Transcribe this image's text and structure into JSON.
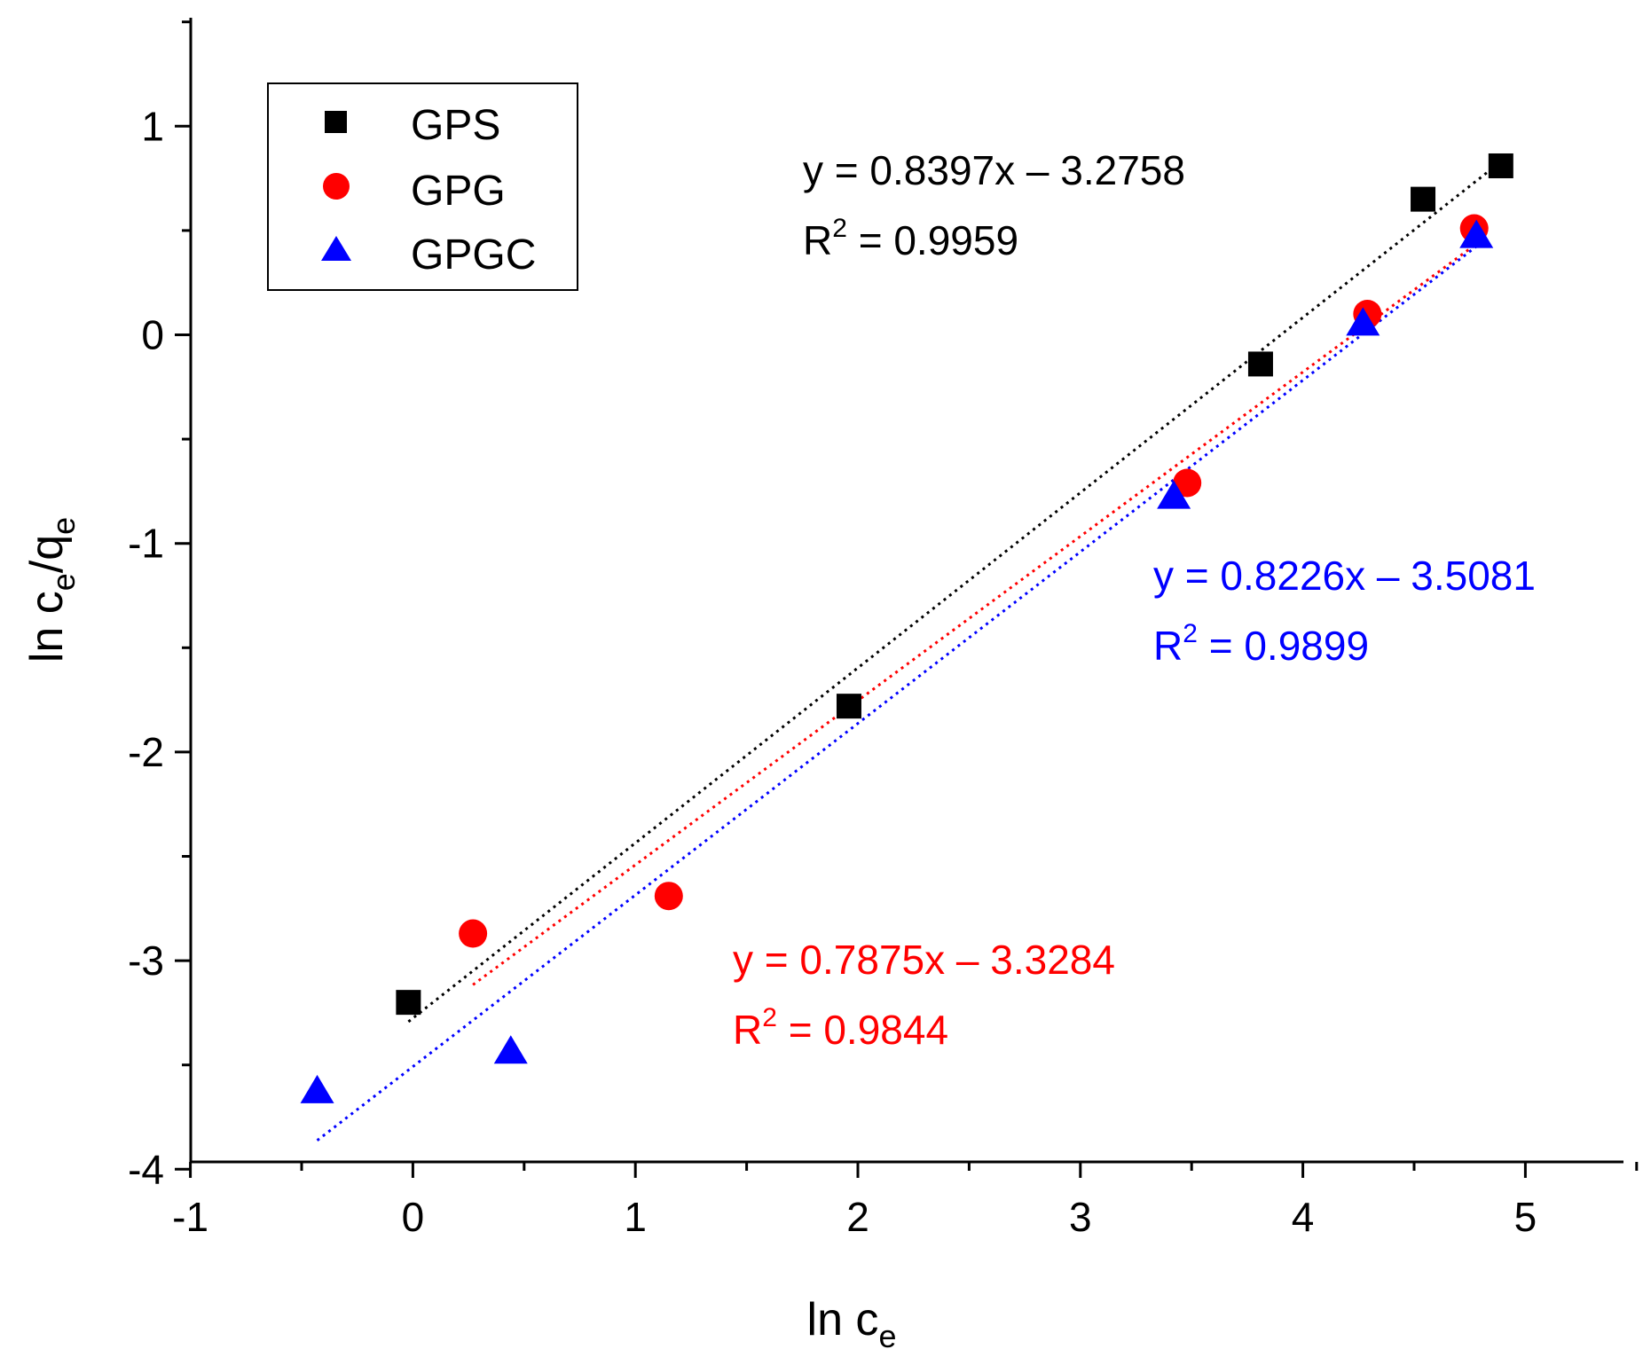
{
  "chart_data": {
    "type": "scatter",
    "xlabel": {
      "main": "ln c",
      "sub": "e"
    },
    "ylabel": {
      "pre": "ln c",
      "sub1": "e",
      "mid": "/q",
      "sub2": "e"
    },
    "xlim": [
      -1,
      5.5
    ],
    "ylim": [
      -4,
      1.5
    ],
    "x_ticks": [
      -1,
      0,
      1,
      2,
      3,
      4,
      5
    ],
    "x_tick_labels": [
      "-1",
      "0",
      "1",
      "2",
      "3",
      "4",
      "5"
    ],
    "y_ticks": [
      -4,
      -3,
      -2,
      -1,
      0,
      1
    ],
    "y_tick_labels": [
      "-4",
      "-3",
      "-2",
      "-1",
      "0",
      "1"
    ],
    "legend_position": "top-left",
    "series": [
      {
        "name": "GPS",
        "marker": "square",
        "color": "#000000",
        "x": [
          -0.02,
          1.96,
          3.81,
          4.54,
          4.89
        ],
        "y": [
          -3.2,
          -1.78,
          -0.14,
          0.65,
          0.81
        ],
        "fit": {
          "slope": 0.8397,
          "intercept": -3.2758,
          "x_range": [
            -0.02,
            4.89
          ]
        },
        "equation": "y = 0.8397x – 3.2758",
        "r2_label": "R",
        "r2_sup": "2",
        "r2_value": " = 0.9959"
      },
      {
        "name": "GPG",
        "marker": "circle",
        "color": "#ff0000",
        "x": [
          0.27,
          1.15,
          3.48,
          4.29,
          4.77
        ],
        "y": [
          -2.87,
          -2.69,
          -0.71,
          0.1,
          0.51
        ],
        "fit": {
          "slope": 0.7875,
          "intercept": -3.3284,
          "x_range": [
            0.27,
            4.77
          ]
        },
        "equation": "y = 0.7875x – 3.3284",
        "r2_label": "R",
        "r2_sup": "2",
        "r2_value": " = 0.9844"
      },
      {
        "name": "GPGC",
        "marker": "triangle",
        "color": "#0000ff",
        "x": [
          -0.43,
          0.44,
          3.42,
          4.27,
          4.78
        ],
        "y": [
          -3.62,
          -3.43,
          -0.77,
          0.06,
          0.48
        ],
        "fit": {
          "slope": 0.8226,
          "intercept": -3.5081,
          "x_range": [
            -0.43,
            4.78
          ]
        },
        "equation": "y = 0.8226x – 3.5081",
        "r2_label": "R",
        "r2_sup": "2",
        "r2_value": " = 0.9899"
      }
    ]
  }
}
